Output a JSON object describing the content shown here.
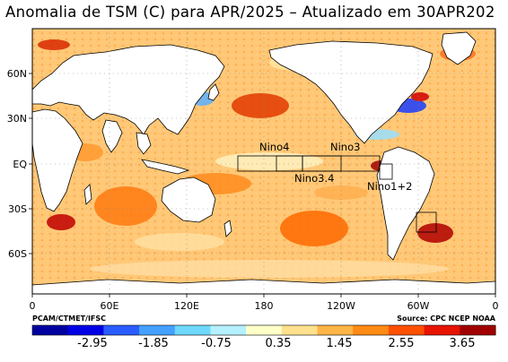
{
  "title": "Anomalia de TSM (C) para APR/2025 – Atualizado em 30APR202",
  "y_ticks": [
    "60N",
    "30N",
    "EQ",
    "30S",
    "60S"
  ],
  "x_ticks": [
    "0",
    "60E",
    "120E",
    "180",
    "120W",
    "60W",
    "0"
  ],
  "regions": [
    "Nino4",
    "Nino3",
    "Nino3.4",
    "Nino1+2"
  ],
  "credit_left": "PCAM/CTMET/IFSC",
  "credit_right": "Source: CPC NCEP NOAA",
  "colorbar": {
    "labels": [
      "-2.95",
      "-1.85",
      "-0.75",
      "0.35",
      "1.45",
      "2.55",
      "3.65"
    ],
    "colors": [
      "#0000a0",
      "#0000e6",
      "#2a5cff",
      "#45a0ff",
      "#6ed8ff",
      "#b4f0ff",
      "#ffffc8",
      "#ffe08c",
      "#ffb446",
      "#ff8a14",
      "#ff5000",
      "#e61400",
      "#a00000"
    ]
  }
}
